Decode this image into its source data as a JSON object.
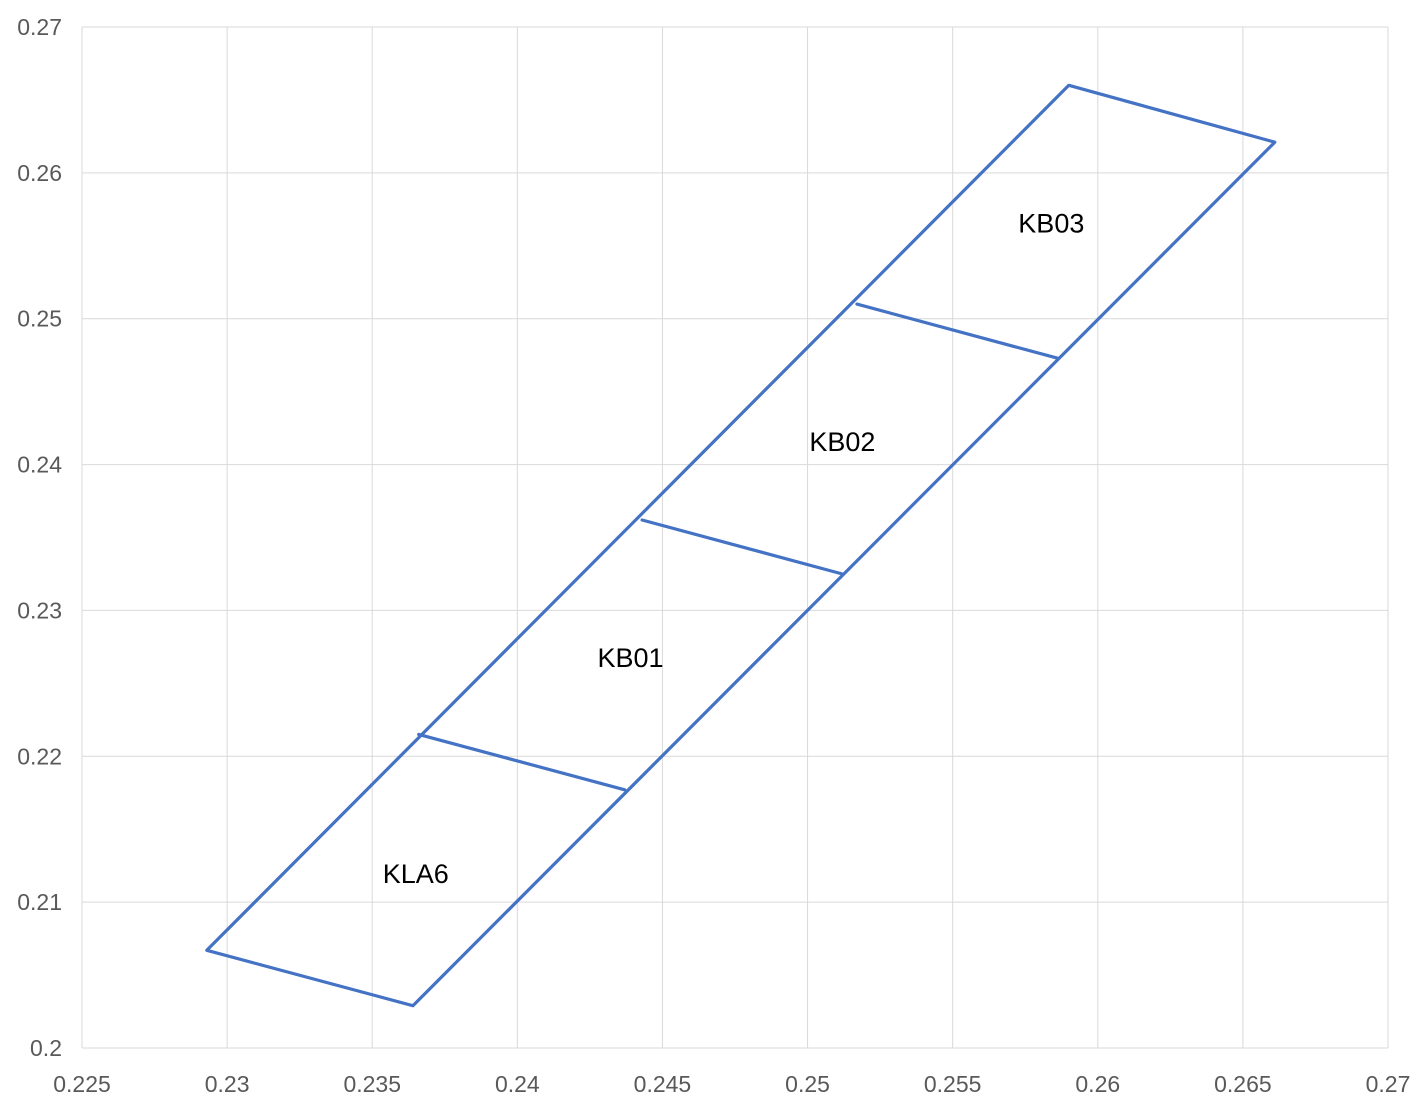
{
  "chart_data": {
    "type": "scatter",
    "title": "",
    "xlabel": "",
    "ylabel": "",
    "xlim": [
      0.225,
      0.27
    ],
    "ylim": [
      0.2,
      0.27
    ],
    "x_ticks": [
      0.225,
      0.23,
      0.235,
      0.24,
      0.245,
      0.25,
      0.255,
      0.26,
      0.265,
      0.27
    ],
    "y_ticks": [
      0.2,
      0.21,
      0.22,
      0.23,
      0.24,
      0.25,
      0.26,
      0.27
    ],
    "x_tick_labels": [
      "0.225",
      "0.23",
      "0.235",
      "0.24",
      "0.245",
      "0.25",
      "0.255",
      "0.26",
      "0.265",
      "0.27"
    ],
    "y_tick_labels": [
      "0.2",
      "0.21",
      "0.22",
      "0.23",
      "0.24",
      "0.25",
      "0.26",
      "0.27"
    ],
    "grid": true,
    "line_color": "#4472c4",
    "series": [
      {
        "mode": "lines",
        "points": [
          [
            0.2364,
            0.2029
          ],
          [
            0.2293,
            0.2067
          ],
          [
            0.259,
            0.266
          ],
          [
            0.2661,
            0.2621
          ],
          [
            0.2364,
            0.2029
          ]
        ]
      },
      {
        "mode": "lines",
        "points": [
          [
            0.2366,
            0.2215
          ],
          [
            0.2437,
            0.2177
          ]
        ]
      },
      {
        "mode": "lines",
        "points": [
          [
            0.2443,
            0.2362
          ],
          [
            0.2512,
            0.2325
          ]
        ]
      },
      {
        "mode": "lines",
        "points": [
          [
            0.2517,
            0.251
          ],
          [
            0.2586,
            0.2473
          ]
        ]
      }
    ],
    "annotations": [
      {
        "text": "KLA6",
        "x": 0.2365,
        "y": 0.212
      },
      {
        "text": "KB01",
        "x": 0.2439,
        "y": 0.2268
      },
      {
        "text": "KB02",
        "x": 0.2512,
        "y": 0.2416
      },
      {
        "text": "KB03",
        "x": 0.2584,
        "y": 0.2566
      }
    ]
  }
}
